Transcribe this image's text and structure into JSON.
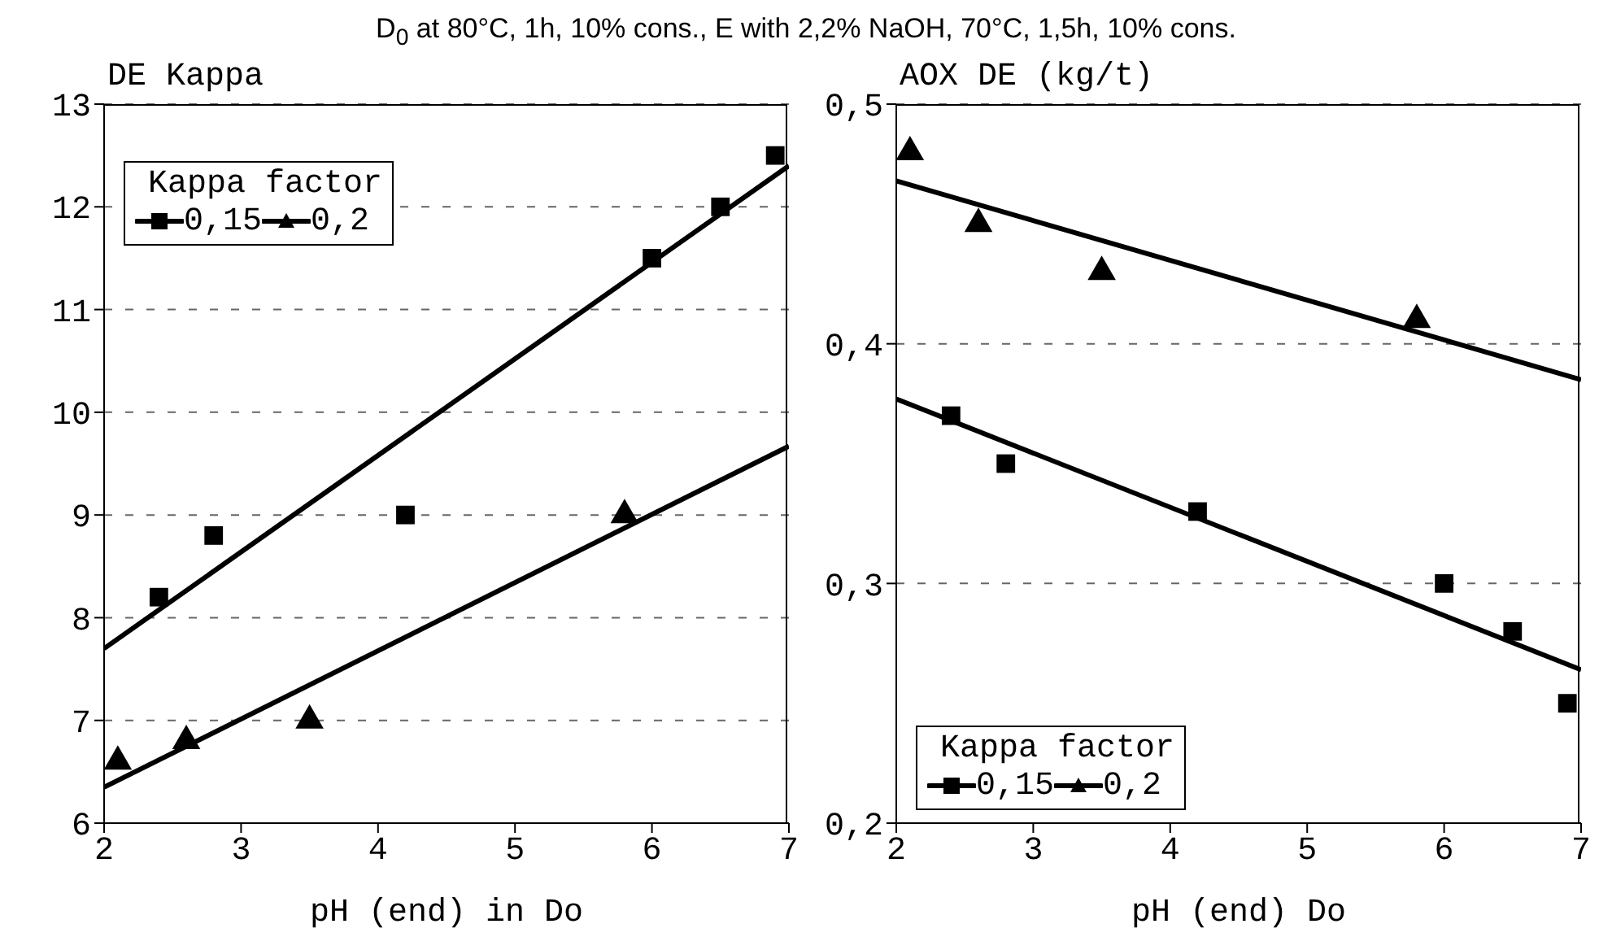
{
  "chart_data": [
    {
      "type": "scatter",
      "title": "D$_{0}$ at 80°C, 1h, 10% cons., E with 2,2% NaOH, 70°C, 1,5h, 10% cons.",
      "xlabel": "pH (end) in Do",
      "ylabel": "DE Kappa",
      "legend_title": "Kappa factor",
      "legend": "top left",
      "grid": "y",
      "xlim": [
        2,
        7
      ],
      "xticks": [
        2,
        3,
        4,
        5,
        6,
        7
      ],
      "ylim": [
        6,
        13
      ],
      "yticks": [
        6,
        7,
        8,
        9,
        10,
        11,
        12,
        13
      ],
      "series": [
        {
          "name": "0,15",
          "type": "scatter",
          "marker": "square",
          "color": "#000000",
          "x": [
            2.4,
            2.8,
            4.2,
            6.0,
            6.5,
            6.9
          ],
          "values": [
            8.2,
            8.8,
            9.0,
            11.5,
            12.0,
            12.5
          ]
        },
        {
          "name": "0,2",
          "type": "scatter",
          "marker": "triangle",
          "color": "#000000",
          "x": [
            2.1,
            2.6,
            3.5,
            5.8
          ],
          "values": [
            6.6,
            6.8,
            7.0,
            9.0
          ]
        },
        {
          "type": "line",
          "color": "#000000",
          "x": [
            2,
            7
          ],
          "values": [
            7.7,
            12.4
          ]
        },
        {
          "type": "line",
          "color": "#000000",
          "x": [
            2,
            7
          ],
          "values": [
            6.35,
            9.67
          ]
        }
      ]
    },
    {
      "type": "scatter",
      "xlabel": "pH (end) Do",
      "ylabel": "AOX DE (kg/t)",
      "legend_title": "Kappa factor",
      "legend": "bottom left",
      "grid": "y",
      "xlim": [
        2,
        7
      ],
      "xticks": [
        2,
        3,
        4,
        5,
        6,
        7
      ],
      "ylim": [
        0.2,
        0.5
      ],
      "yticks": [
        {
          "value": 0.2,
          "label": "0,2"
        },
        {
          "value": 0.3,
          "label": "0,3"
        },
        {
          "value": 0.4,
          "label": "0,4"
        },
        {
          "value": 0.5,
          "label": "0,5"
        }
      ],
      "series": [
        {
          "name": "0,15",
          "type": "scatter",
          "marker": "square",
          "color": "#000000",
          "x": [
            2.4,
            2.8,
            4.2,
            6.0,
            6.5,
            6.9
          ],
          "values": [
            0.37,
            0.35,
            0.33,
            0.3,
            0.28,
            0.25
          ]
        },
        {
          "name": "0,2",
          "type": "scatter",
          "marker": "triangle",
          "color": "#000000",
          "x": [
            2.1,
            2.6,
            3.5,
            5.8
          ],
          "values": [
            0.48,
            0.45,
            0.43,
            0.41
          ]
        },
        {
          "type": "line",
          "color": "#000000",
          "x": [
            2,
            7
          ],
          "values": [
            0.377,
            0.264
          ]
        },
        {
          "type": "line",
          "color": "#000000",
          "x": [
            2,
            7
          ],
          "values": [
            0.468,
            0.385
          ]
        }
      ]
    }
  ]
}
